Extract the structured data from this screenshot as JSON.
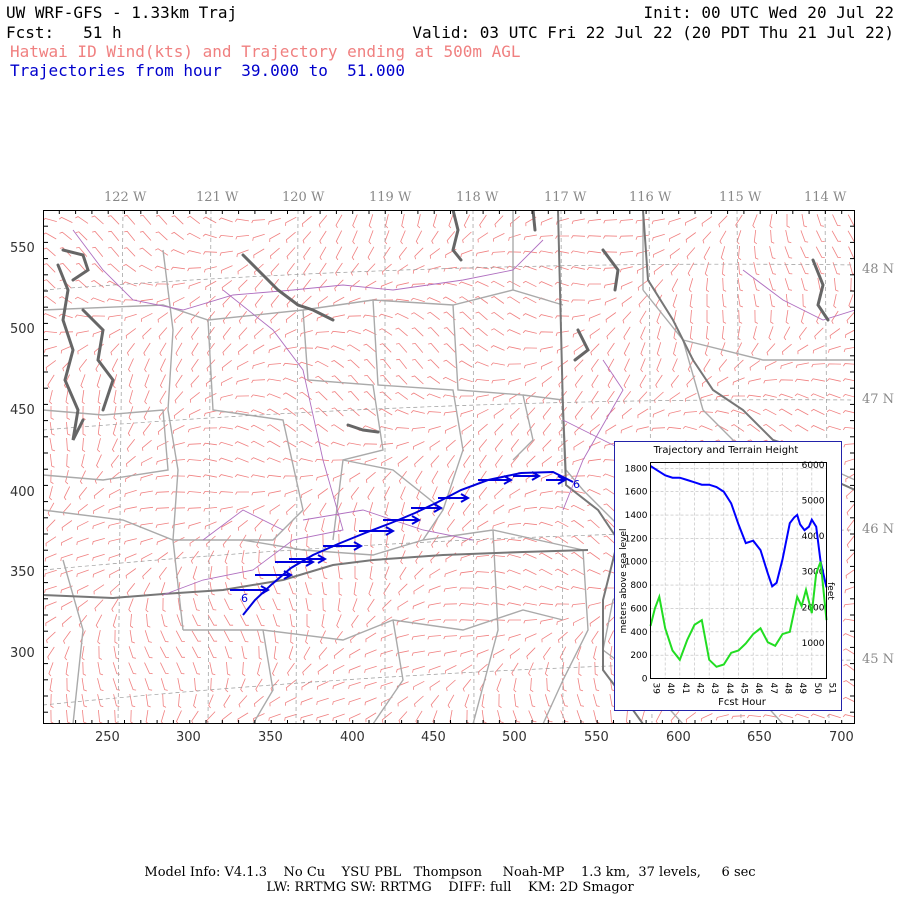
{
  "header": {
    "model": "UW WRF-GFS - 1.33km Traj",
    "init": "Init: 00 UTC Wed 20 Jul 22",
    "fcst": "Fcst:   51 h",
    "valid": "Valid: 03 UTC Fri 22 Jul 22 (20 PDT Thu 21 Jul 22)",
    "subtitle": "Hatwai ID Wind(kts) and Trajectory ending at 500m AGL",
    "traj_range_label": "Trajectories from hour",
    "traj_start": "39.000",
    "traj_to": "to",
    "traj_end": "51.000"
  },
  "map": {
    "top_lon_labels": [
      "122 W",
      "121 W",
      "120 W",
      "119 W",
      "118 W",
      "117 W",
      "116 W",
      "115 W",
      "114 W"
    ],
    "right_lat_labels": [
      "48 N",
      "47 N",
      "46 N",
      "45 N"
    ],
    "y_axis_labels": [
      "550",
      "500",
      "450",
      "400",
      "350",
      "300"
    ],
    "x_axis_labels": [
      "250",
      "300",
      "350",
      "400",
      "450",
      "500",
      "550",
      "600",
      "650",
      "700"
    ],
    "trajectory_start_marker": "6",
    "trajectory_end_marker": "6",
    "colors": {
      "wind_barbs": "#f08080",
      "borders": "#aaaaaa",
      "coast": "#666666",
      "rivers": "#b070c0",
      "trajectory": "#0000dd"
    }
  },
  "inset": {
    "title": "Trajectory and Terrain Height",
    "ylabel_left": "meters above sea level",
    "ylabel_right": "feet",
    "xlabel": "Fcst Hour",
    "left_ticks": [
      "1800",
      "1600",
      "1400",
      "1200",
      "1000",
      "800",
      "600",
      "400",
      "200",
      "0"
    ],
    "right_ticks": [
      "6000",
      "5000",
      "4000",
      "3000",
      "2000",
      "1000"
    ],
    "x_ticks": [
      "39",
      "40",
      "41",
      "42",
      "43",
      "44",
      "45",
      "46",
      "47",
      "48",
      "49",
      "50",
      "51"
    ]
  },
  "chart_data": {
    "type": "line",
    "title": "Trajectory and Terrain Height",
    "xlabel": "Fcst Hour",
    "ylabel": "meters above sea level",
    "ylim": [
      0,
      1850
    ],
    "xlim": [
      39,
      51
    ],
    "series": [
      {
        "color": "#0000ff",
        "x": [
          39.0,
          39.5,
          40.0,
          40.5,
          41.0,
          41.5,
          42.0,
          42.5,
          43.0,
          43.5,
          44.0,
          44.5,
          45.0,
          45.5,
          46.0,
          46.5,
          47.0,
          47.3,
          47.6,
          48.0,
          48.5,
          48.8,
          49.0,
          49.2,
          49.5,
          49.8,
          50.0,
          50.3,
          50.6,
          51.0
        ],
        "y": [
          1820,
          1780,
          1740,
          1720,
          1720,
          1700,
          1680,
          1660,
          1660,
          1640,
          1600,
          1500,
          1320,
          1160,
          1180,
          1100,
          900,
          790,
          820,
          1020,
          1330,
          1380,
          1400,
          1320,
          1270,
          1300,
          1360,
          1300,
          1000,
          780
        ]
      },
      {
        "color": "#22dd22",
        "x": [
          39.0,
          39.3,
          39.6,
          40.0,
          40.5,
          41.0,
          41.5,
          42.0,
          42.5,
          43.0,
          43.5,
          44.0,
          44.5,
          45.0,
          45.5,
          46.0,
          46.5,
          47.0,
          47.5,
          48.0,
          48.5,
          49.0,
          49.3,
          49.6,
          50.0,
          50.3,
          50.6,
          51.0
        ],
        "y": [
          450,
          600,
          700,
          430,
          240,
          160,
          330,
          460,
          500,
          160,
          100,
          120,
          220,
          240,
          300,
          380,
          430,
          310,
          280,
          380,
          400,
          700,
          620,
          760,
          560,
          900,
          1000,
          500
        ]
      }
    ]
  }
}
